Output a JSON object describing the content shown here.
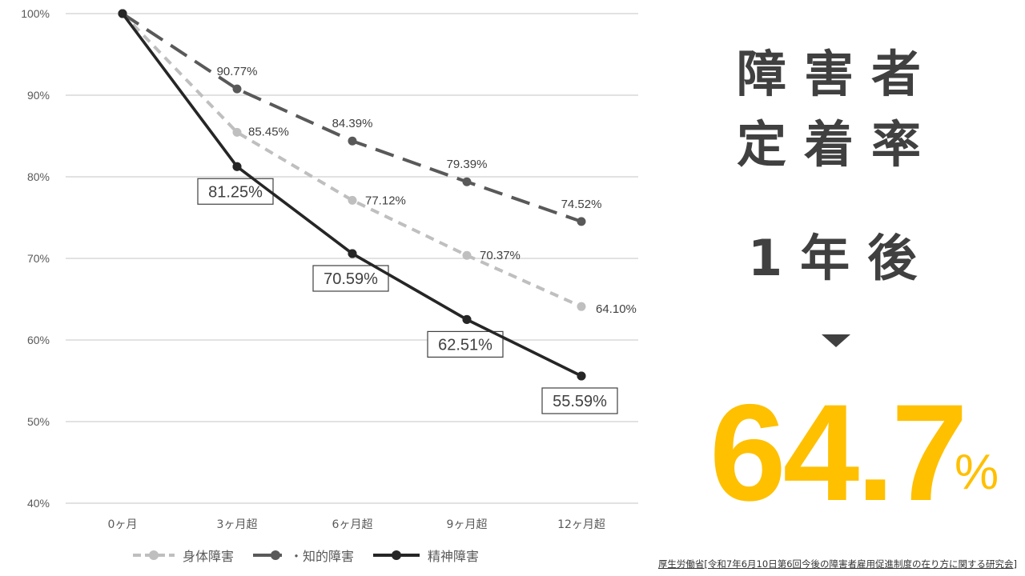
{
  "chart_data": {
    "type": "line",
    "title": "",
    "xlabel": "",
    "ylabel": "",
    "categories": [
      "0ヶ月",
      "3ヶ月超",
      "6ヶ月超",
      "9ヶ月超",
      "12ヶ月超"
    ],
    "y_ticks": [
      "100%",
      "90%",
      "80%",
      "70%",
      "60%",
      "50%",
      "40%"
    ],
    "ylim": [
      40,
      100
    ],
    "grid": true,
    "legend_position": "bottom",
    "series": [
      {
        "name": "身体障害",
        "values": [
          100,
          85.45,
          77.12,
          70.37,
          64.1
        ],
        "labels": [
          "",
          "85.45%",
          "77.12%",
          "70.37%",
          "64.10%"
        ],
        "color": "#BFBFBF",
        "style": "dashed-short"
      },
      {
        "name": "知的障害",
        "values": [
          100,
          90.77,
          84.39,
          79.39,
          74.52
        ],
        "labels": [
          "",
          "90.77%",
          "84.39%",
          "79.39%",
          "74.52%"
        ],
        "color": "#595959",
        "style": "dashed-long"
      },
      {
        "name": "精神障害",
        "values": [
          100,
          81.25,
          70.59,
          62.51,
          55.59
        ],
        "labels": [
          "",
          "81.25%",
          "70.59%",
          "62.51%",
          "55.59%"
        ],
        "color": "#262626",
        "style": "solid",
        "boxed_labels": true
      }
    ]
  },
  "legend": {
    "items": [
      {
        "label": "身体障害",
        "color": "#BFBFBF"
      },
      {
        "label": "・知的障害",
        "color": "#595959"
      },
      {
        "label": "精神障害",
        "color": "#262626"
      }
    ]
  },
  "side": {
    "title_line1": "障害者",
    "title_line2": "定着率",
    "subtitle": "1年後",
    "big_value": "64.7",
    "big_unit": "%",
    "accent_color": "#FFC000",
    "arrow_icon": "triangle-down"
  },
  "source": "厚生労働省[令和7年6月10日第6回今後の障害者雇用促進制度の在り方に関する研究会]"
}
